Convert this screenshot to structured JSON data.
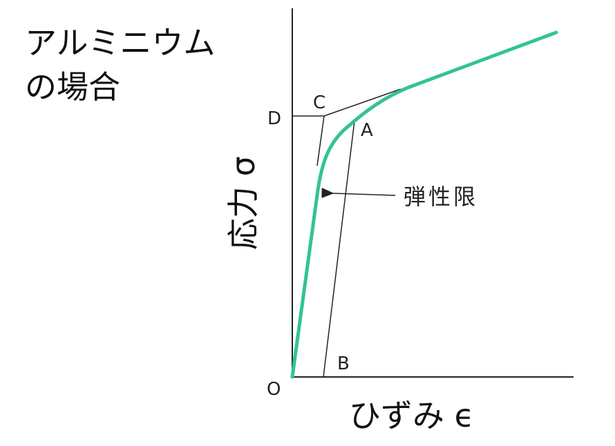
{
  "title_line1": "アルミニウム",
  "title_line2": "の場合",
  "y_axis_label": "応力 σ",
  "x_axis_label": "ひずみ ϵ",
  "annotation": "弾性限",
  "points": {
    "O": "O",
    "A": "A",
    "B": "B",
    "C": "C",
    "D": "D"
  },
  "colors": {
    "curve": "#33c48e",
    "lines": "#222222"
  }
}
